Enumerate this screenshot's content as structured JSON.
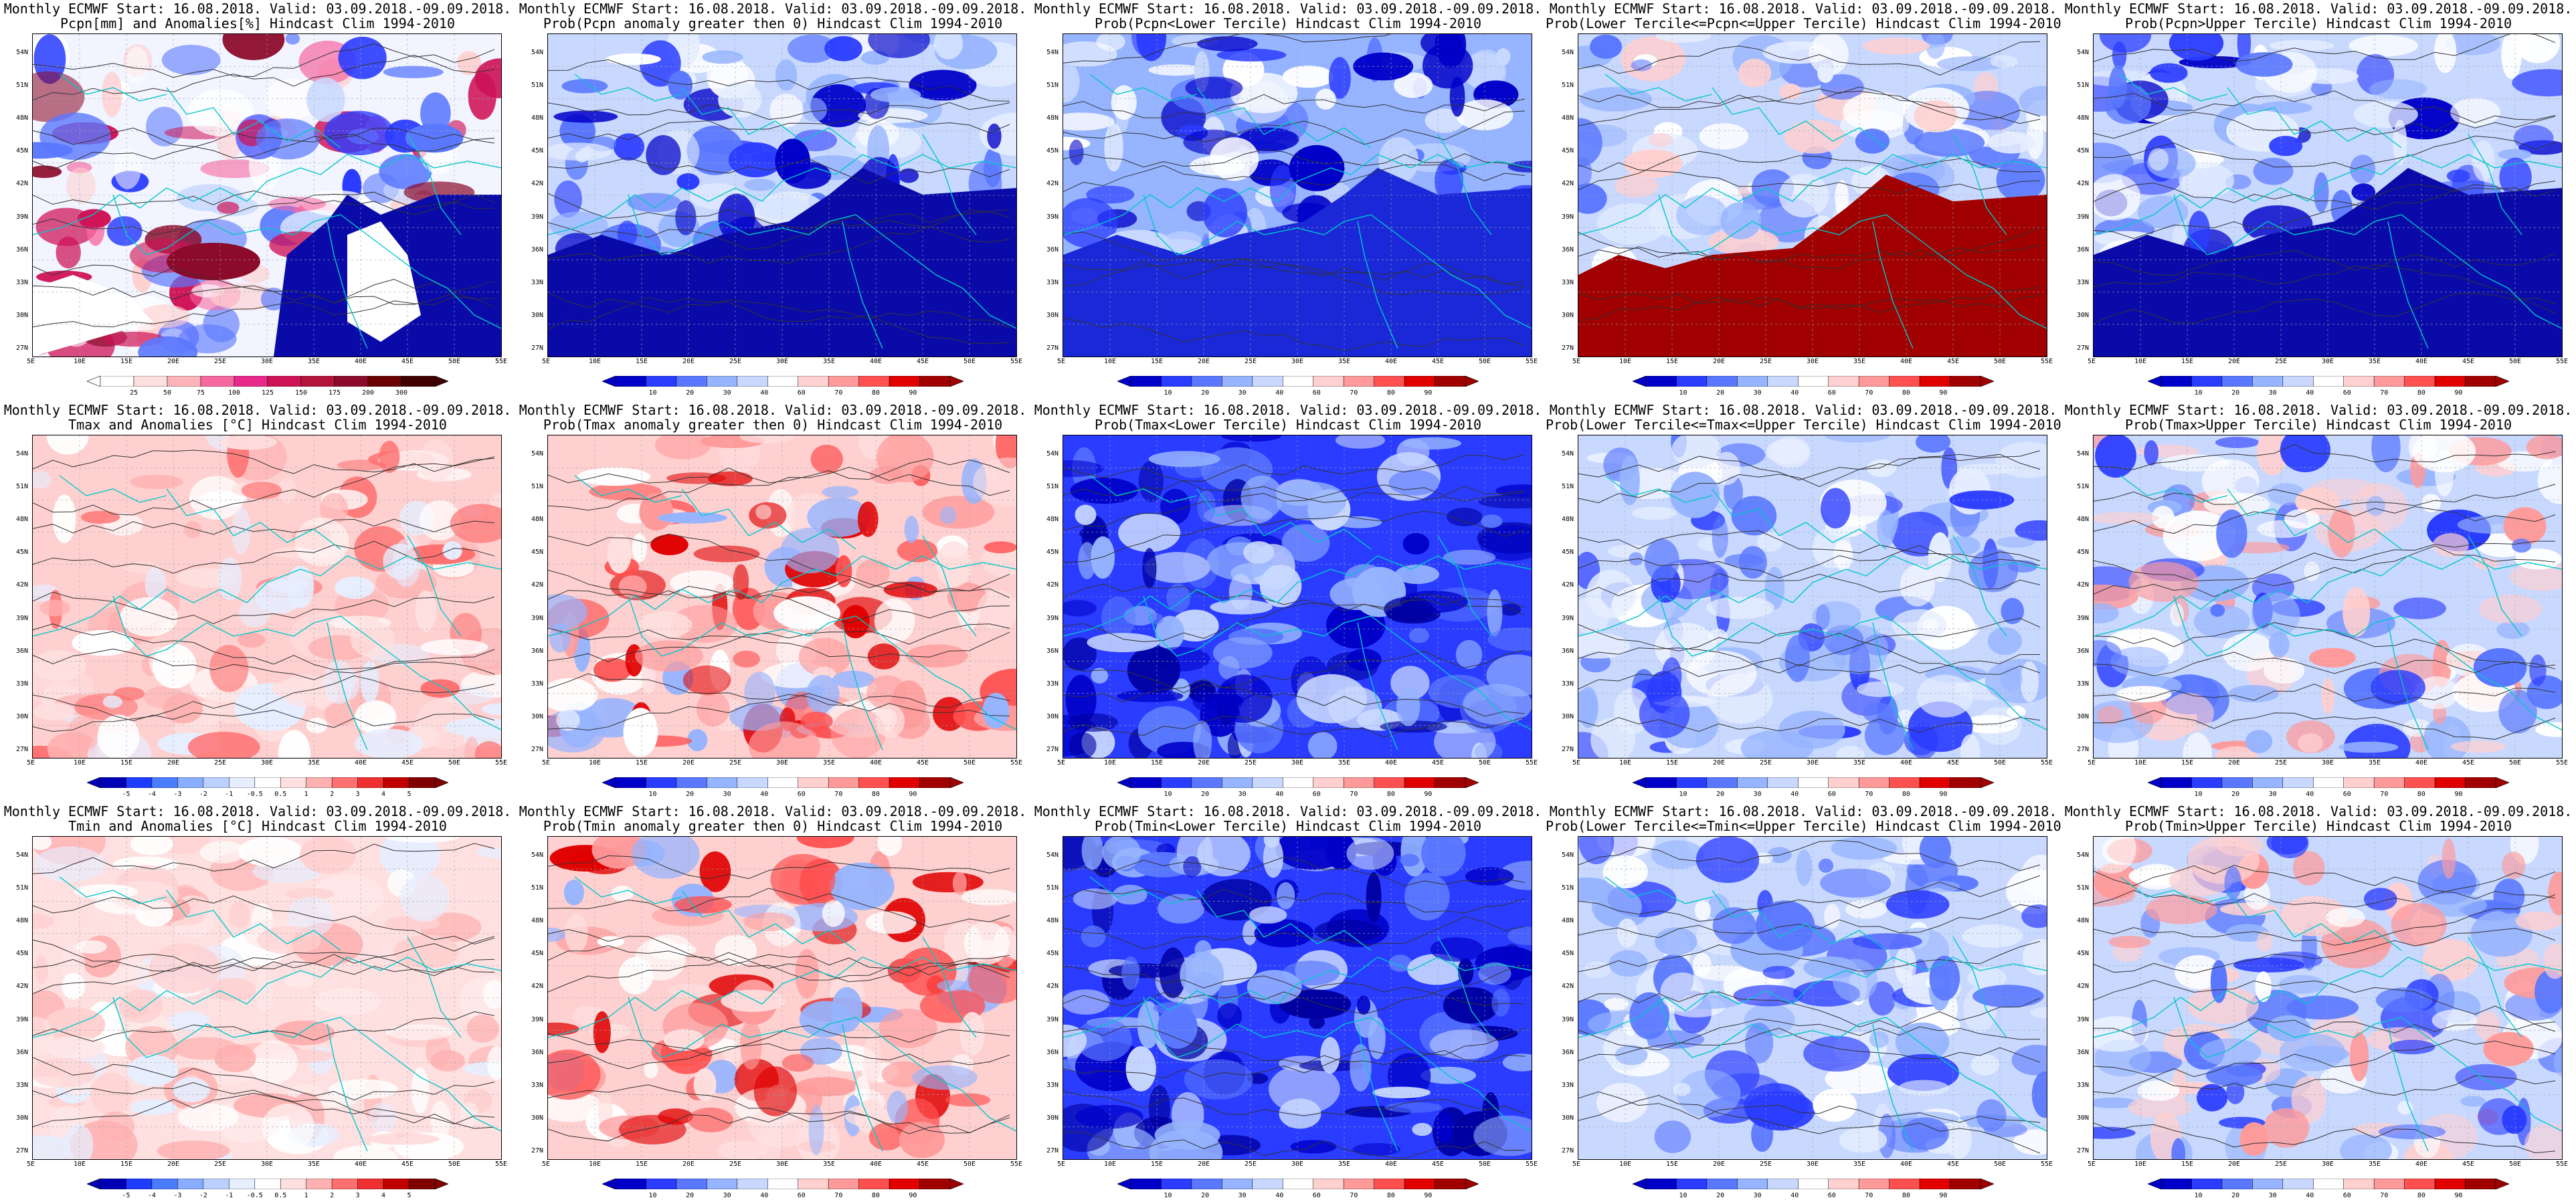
{
  "figure": {
    "axes": {
      "lat_labels": [
        "54N",
        "51N",
        "48N",
        "45N",
        "42N",
        "39N",
        "36N",
        "33N",
        "30N",
        "27N"
      ],
      "lon_labels": [
        "5E",
        "10E",
        "15E",
        "20E",
        "25E",
        "30E",
        "35E",
        "40E",
        "45E",
        "50E",
        "55E"
      ]
    },
    "colorbars": {
      "precip_anom": [
        "25",
        "50",
        "75",
        "100",
        "125",
        "150",
        "175",
        "200",
        "300"
      ],
      "prob": [
        "10",
        "20",
        "30",
        "40",
        "60",
        "70",
        "80",
        "90"
      ],
      "temp_anom": [
        "-5",
        "-4",
        "-3",
        "-2",
        "-1",
        "-0.5",
        "0.5",
        "1",
        "2",
        "3",
        "4",
        "5"
      ]
    },
    "panels": [
      {
        "title1": "Monthly ECMWF Start: 16.08.2018. Valid: 03.09.2018.-09.09.2018.",
        "title2": "Pcpn[mm] and Anomalies[%] Hindcast Clim 1994-2010",
        "cbar": "precip_anom",
        "scheme": "precip"
      },
      {
        "title1": "Monthly ECMWF Start: 16.08.2018. Valid: 03.09.2018.-09.09.2018.",
        "title2": "Prob(Pcpn anomaly greater then 0) Hindcast Clim 1994-2010",
        "cbar": "prob",
        "scheme": "pblue"
      },
      {
        "title1": "Monthly ECMWF Start: 16.08.2018. Valid: 03.09.2018.-09.09.2018.",
        "title2": "Prob(Pcpn<Lower Tercile) Hindcast Clim 1994-2010",
        "cbar": "prob",
        "scheme": "pblue2"
      },
      {
        "title1": "Monthly ECMWF Start: 16.08.2018. Valid: 03.09.2018.-09.09.2018.",
        "title2": "Prob(Lower Tercile<=Pcpn<=Upper Tercile) Hindcast Clim 1994-2010",
        "cbar": "prob",
        "scheme": "pred"
      },
      {
        "title1": "Monthly ECMWF Start: 16.08.2018. Valid: 03.09.2018.-09.09.2018.",
        "title2": "Prob(Pcpn>Upper Tercile) Hindcast Clim 1994-2010",
        "cbar": "prob",
        "scheme": "pblue"
      },
      {
        "title1": "Monthly ECMWF Start: 16.08.2018. Valid: 03.09.2018.-09.09.2018.",
        "title2": "Tmax and Anomalies [°C] Hindcast Clim 1994-2010",
        "cbar": "temp_anom",
        "scheme": "tanom"
      },
      {
        "title1": "Monthly ECMWF Start: 16.08.2018. Valid: 03.09.2018.-09.09.2018.",
        "title2": "Prob(Tmax anomaly greater then 0) Hindcast Clim 1994-2010",
        "cbar": "prob",
        "scheme": "tred"
      },
      {
        "title1": "Monthly ECMWF Start: 16.08.2018. Valid: 03.09.2018.-09.09.2018.",
        "title2": "Prob(Tmax<Lower Tercile) Hindcast Clim 1994-2010",
        "cbar": "prob",
        "scheme": "deepblue"
      },
      {
        "title1": "Monthly ECMWF Start: 16.08.2018. Valid: 03.09.2018.-09.09.2018.",
        "title2": "Prob(Lower Tercile<=Tmax<=Upper Tercile) Hindcast Clim 1994-2010",
        "cbar": "prob",
        "scheme": "mixed"
      },
      {
        "title1": "Monthly ECMWF Start: 16.08.2018. Valid: 03.09.2018.-09.09.2018.",
        "title2": "Prob(Tmax>Upper Tercile) Hindcast Clim 1994-2010",
        "cbar": "prob",
        "scheme": "mixedred"
      },
      {
        "title1": "Monthly ECMWF Start: 16.08.2018. Valid: 03.09.2018.-09.09.2018.",
        "title2": "Tmin and Anomalies [°C] Hindcast Clim 1994-2010",
        "cbar": "temp_anom",
        "scheme": "tanomlight"
      },
      {
        "title1": "Monthly ECMWF Start: 16.08.2018. Valid: 03.09.2018.-09.09.2018.",
        "title2": "Prob(Tmin anomaly greater then 0) Hindcast Clim 1994-2010",
        "cbar": "prob",
        "scheme": "tred"
      },
      {
        "title1": "Monthly ECMWF Start: 16.08.2018. Valid: 03.09.2018.-09.09.2018.",
        "title2": "Prob(Tmin<Lower Tercile) Hindcast Clim 1994-2010",
        "cbar": "prob",
        "scheme": "deepblue"
      },
      {
        "title1": "Monthly ECMWF Start: 16.08.2018. Valid: 03.09.2018.-09.09.2018.",
        "title2": "Prob(Lower Tercile<=Tmin<=Upper Tercile) Hindcast Clim 1994-2010",
        "cbar": "prob",
        "scheme": "mixed"
      },
      {
        "title1": "Monthly ECMWF Start: 16.08.2018. Valid: 03.09.2018.-09.09.2018.",
        "title2": "Prob(Tmin>Upper Tercile) Hindcast Clim 1994-2010",
        "cbar": "prob",
        "scheme": "mixedred"
      }
    ],
    "palettes": {
      "precip_anom": [
        "#ffffff",
        "#fde0dd",
        "#fbb4b9",
        "#f768a1",
        "#e7298a",
        "#ce1256",
        "#b4143c",
        "#8c0a2a",
        "#6a0000",
        "#400000"
      ],
      "prob": [
        "#0000c8",
        "#2a3cff",
        "#5a78ff",
        "#96b4ff",
        "#c8d8ff",
        "#ffffff",
        "#ffd0d0",
        "#ff9a9a",
        "#ff5050",
        "#e00000",
        "#a00000"
      ],
      "temp_anom": [
        "#0000b4",
        "#1e3cff",
        "#4a7cff",
        "#8aaeff",
        "#bcd0ff",
        "#e6eeff",
        "#ffffff",
        "#ffe0e0",
        "#ffb0b0",
        "#ff7070",
        "#f03030",
        "#c00000",
        "#800000"
      ]
    }
  }
}
